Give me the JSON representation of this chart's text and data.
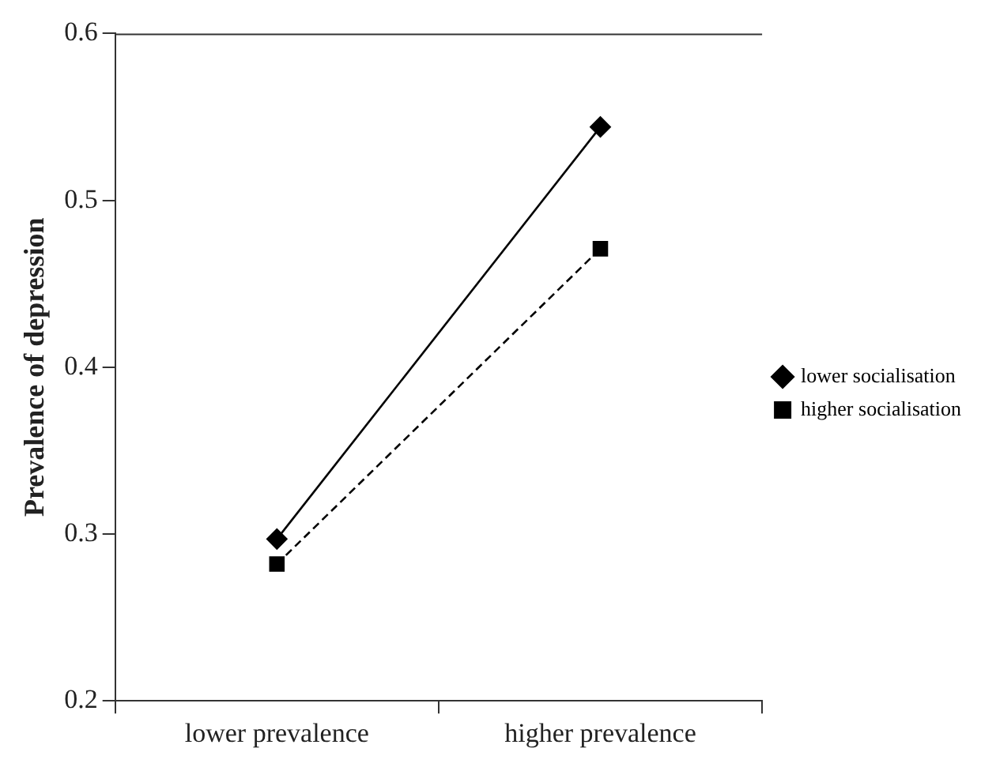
{
  "chart_data": {
    "type": "line",
    "ylabel": "Prevalence of depression",
    "categories": [
      "lower prevalence",
      "higher prevalence"
    ],
    "series": [
      {
        "name": "lower socialisation",
        "color": "#000000",
        "values": [
          0.297,
          0.544
        ],
        "marker": "diamond",
        "line_style": "solid"
      },
      {
        "name": "higher socialisation",
        "color": "#000000",
        "values": [
          0.282,
          0.471
        ],
        "marker": "square",
        "line_style": "dashed"
      }
    ],
    "ylim": [
      0.2,
      0.6
    ],
    "yticks": [
      0.2,
      0.3,
      0.4,
      0.5,
      0.6
    ],
    "grid": false,
    "legend": "right"
  }
}
